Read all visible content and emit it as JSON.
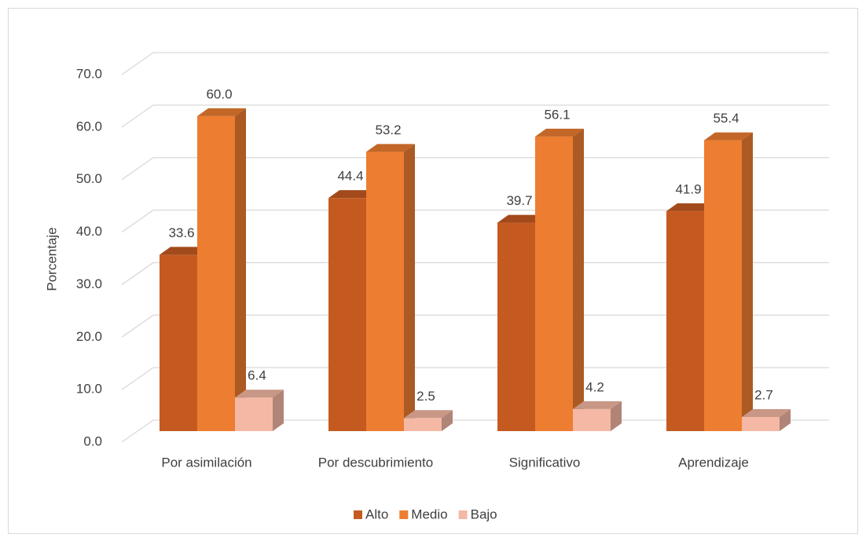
{
  "chart_data": {
    "type": "bar3d",
    "y_axis_label": "Porcentaje",
    "categories": [
      "Por asimilación",
      "Por descubrimiento",
      "Significativo",
      "Aprendizaje"
    ],
    "series": [
      {
        "name": "Alto",
        "color": "#c55a21",
        "values": [
          33.6,
          44.4,
          39.7,
          41.9
        ],
        "value_labels": [
          "33.6",
          "44.4",
          "39.7",
          "41.9"
        ]
      },
      {
        "name": "Medio",
        "color": "#ed7d31",
        "values": [
          60.0,
          53.2,
          56.1,
          55.4
        ],
        "value_labels": [
          "60.0",
          "53.2",
          "56.1",
          "55.4"
        ]
      },
      {
        "name": "Bajo",
        "color": "#f4b8a4",
        "values": [
          6.4,
          2.5,
          4.2,
          2.7
        ],
        "value_labels": [
          "6.4",
          "2.5",
          "4.2",
          "2.7"
        ]
      }
    ],
    "ylim": [
      0,
      70
    ],
    "yticks": [
      {
        "value": 0,
        "label": "0.0"
      },
      {
        "value": 10,
        "label": "10.0"
      },
      {
        "value": 20,
        "label": "20.0"
      },
      {
        "value": 30,
        "label": "30.0"
      },
      {
        "value": 40,
        "label": "40.0"
      },
      {
        "value": 50,
        "label": "50.0"
      },
      {
        "value": 60,
        "label": "60.0"
      },
      {
        "value": 70,
        "label": "70.0"
      }
    ],
    "grid": true,
    "legend": "bottom"
  }
}
